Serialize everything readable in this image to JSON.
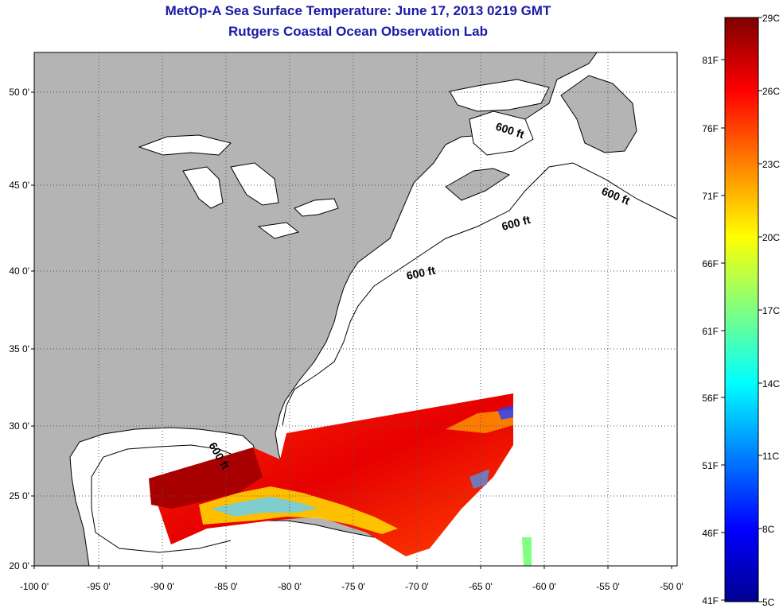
{
  "title": {
    "line1": "MetOp-A Sea Surface Temperature:  June 17, 2013 0219 GMT",
    "line2": "Rutgers Coastal Ocean Observation Lab"
  },
  "axes": {
    "lat_labels": [
      "20 0'",
      "25 0'",
      "30 0'",
      "35 0'",
      "40 0'",
      "45 0'",
      "50 0'"
    ],
    "lon_labels": [
      "-100 0'",
      "-95 0'",
      "-90 0'",
      "-85 0'",
      "-80 0'",
      "-75 0'",
      "-70 0'",
      "-65 0'",
      "-60 0'",
      "-55 0'",
      "-50 0'"
    ]
  },
  "isobath_labels": [
    "600 ft",
    "600 ft",
    "600 ft",
    "600 ft",
    "600 ft"
  ],
  "colorbar": {
    "celsius": [
      "29C",
      "26C",
      "23C",
      "20C",
      "17C",
      "14C",
      "11C",
      "8C",
      "5C"
    ],
    "fahrenheit": [
      "81F",
      "76F",
      "71F",
      "66F",
      "61F",
      "56F",
      "51F",
      "46F",
      "41F"
    ],
    "stops": [
      "#7f0000",
      "#ff0000",
      "#ff8000",
      "#ffff00",
      "#80ff80",
      "#00ffff",
      "#0080ff",
      "#0000ff",
      "#00008f"
    ]
  },
  "colors": {
    "land": "#b4b4b4",
    "ocean": "#ffffff",
    "title": "#1a1aa6"
  }
}
